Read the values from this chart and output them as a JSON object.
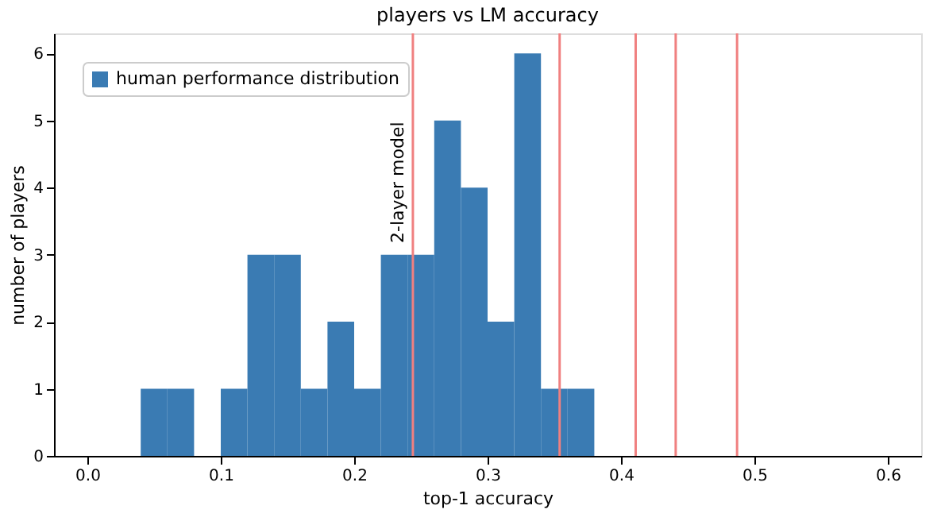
{
  "chart_data": {
    "type": "histogram",
    "title": "players vs LM accuracy",
    "xlabel": "top-1 accuracy",
    "ylabel": "number of players",
    "bins": [
      0.04,
      0.06,
      0.08,
      0.1,
      0.12,
      0.14,
      0.16,
      0.18,
      0.2,
      0.22,
      0.24,
      0.26,
      0.28,
      0.3,
      0.32,
      0.34,
      0.36,
      0.38
    ],
    "series": [
      {
        "name": "human performance distribution",
        "color": "#3a7bb3",
        "values": [
          1,
          1,
          0,
          1,
          3,
          3,
          1,
          2,
          1,
          3,
          3,
          5,
          4,
          2,
          6,
          1,
          1
        ]
      }
    ],
    "xlim": [
      -0.025,
      0.625
    ],
    "xticks": [
      {
        "value": 0,
        "label": "0.0"
      },
      {
        "value": 0.1,
        "label": "0.1"
      },
      {
        "value": 0.2,
        "label": "0.2"
      },
      {
        "value": 0.3,
        "label": "0.3"
      },
      {
        "value": 0.4,
        "label": "0.4"
      },
      {
        "value": 0.5,
        "label": "0.5"
      },
      {
        "value": 0.6,
        "label": "0.6"
      }
    ],
    "ylim": [
      0,
      6.3
    ],
    "yticks": [
      0,
      1,
      2,
      3,
      4,
      5,
      6
    ],
    "ref_lines": [
      {
        "axis": "x",
        "value": 0.244,
        "label": "2-layer model",
        "color": "#f08080"
      },
      {
        "axis": "x",
        "value": 0.354,
        "color": "#f08080"
      },
      {
        "axis": "x",
        "value": 0.411,
        "color": "#f08080"
      },
      {
        "axis": "x",
        "value": 0.441,
        "color": "#f08080"
      },
      {
        "axis": "x",
        "value": 0.487,
        "color": "#f08080"
      }
    ],
    "grid": false,
    "legend": "top left"
  }
}
